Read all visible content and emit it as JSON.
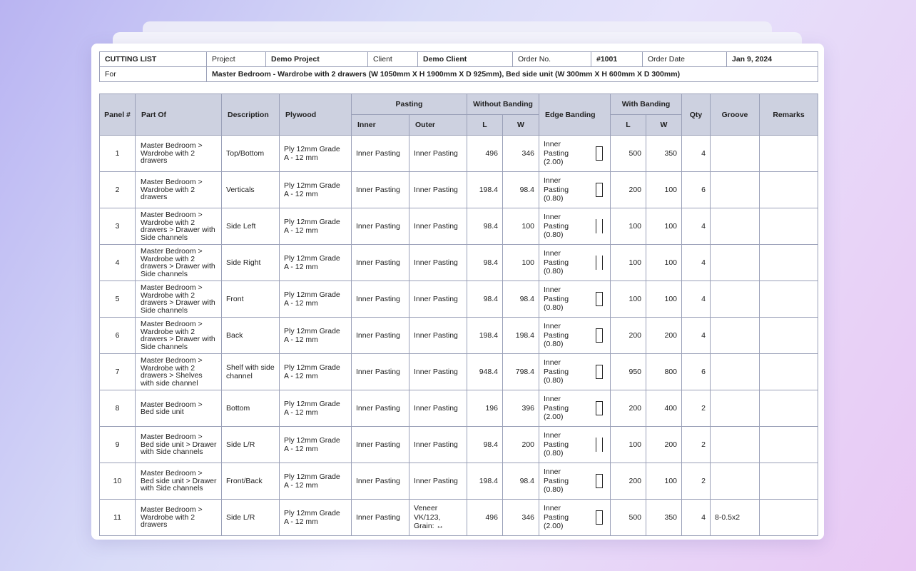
{
  "header": {
    "title": "CUTTING LIST",
    "project_label": "Project",
    "project": "Demo Project",
    "client_label": "Client",
    "client": "Demo Client",
    "order_no_label": "Order No.",
    "order_no": "#1001",
    "order_date_label": "Order Date",
    "order_date": "Jan 9, 2024",
    "for_label": "For",
    "for": "Master Bedroom - Wardrobe with 2 drawers (W 1050mm X H 1900mm X D 925mm), Bed side unit (W 300mm X H 600mm X D 300mm)"
  },
  "columns": {
    "panel": "Panel #",
    "part_of": "Part Of",
    "description": "Description",
    "plywood": "Plywood",
    "pasting": "Pasting",
    "inner": "Inner",
    "outer": "Outer",
    "without_banding": "Without Banding",
    "l": "L",
    "w": "W",
    "edge_banding": "Edge Banding",
    "with_banding": "With Banding",
    "qty": "Qty",
    "groove": "Groove",
    "remarks": "Remarks"
  },
  "rows": [
    {
      "panel": "1",
      "part_of": "Master Bedroom > Wardrobe with 2 drawers",
      "description": "Top/Bottom",
      "plywood": "Ply 12mm Grade A - 12 mm",
      "inner": "Inner Pasting",
      "outer": "Inner Pasting",
      "wo_l": "496",
      "wo_w": "346",
      "edge": "Inner Pasting (2.00)",
      "edge_icon": "edge-all-sides-icon",
      "w_l": "500",
      "w_w": "350",
      "qty": "4",
      "groove": "",
      "remarks": ""
    },
    {
      "panel": "2",
      "part_of": "Master Bedroom > Wardrobe with 2 drawers",
      "description": "Verticals",
      "plywood": "Ply 12mm Grade A - 12 mm",
      "inner": "Inner Pasting",
      "outer": "Inner Pasting",
      "wo_l": "198.4",
      "wo_w": "98.4",
      "edge": "Inner Pasting (0.80)",
      "edge_icon": "edge-all-sides-icon",
      "w_l": "200",
      "w_w": "100",
      "qty": "6",
      "groove": "",
      "remarks": ""
    },
    {
      "panel": "3",
      "part_of": "Master Bedroom > Wardrobe with 2 drawers > Drawer with Side channels",
      "description": "Side Left",
      "plywood": "Ply 12mm Grade A - 12 mm",
      "inner": "Inner Pasting",
      "outer": "Inner Pasting",
      "wo_l": "98.4",
      "wo_w": "100",
      "edge": "Inner Pasting (0.80)",
      "edge_icon": "edge-two-sides-icon",
      "w_l": "100",
      "w_w": "100",
      "qty": "4",
      "groove": "",
      "remarks": ""
    },
    {
      "panel": "4",
      "part_of": "Master Bedroom > Wardrobe with 2 drawers > Drawer with Side channels",
      "description": "Side Right",
      "plywood": "Ply 12mm Grade A - 12 mm",
      "inner": "Inner Pasting",
      "outer": "Inner Pasting",
      "wo_l": "98.4",
      "wo_w": "100",
      "edge": "Inner Pasting (0.80)",
      "edge_icon": "edge-two-sides-icon",
      "w_l": "100",
      "w_w": "100",
      "qty": "4",
      "groove": "",
      "remarks": ""
    },
    {
      "panel": "5",
      "part_of": "Master Bedroom > Wardrobe with 2 drawers > Drawer with Side channels",
      "description": "Front",
      "plywood": "Ply 12mm Grade A - 12 mm",
      "inner": "Inner Pasting",
      "outer": "Inner Pasting",
      "wo_l": "98.4",
      "wo_w": "98.4",
      "edge": "Inner Pasting (0.80)",
      "edge_icon": "edge-all-sides-icon",
      "w_l": "100",
      "w_w": "100",
      "qty": "4",
      "groove": "",
      "remarks": ""
    },
    {
      "panel": "6",
      "part_of": "Master Bedroom > Wardrobe with 2 drawers > Drawer with Side channels",
      "description": "Back",
      "plywood": "Ply 12mm Grade A - 12 mm",
      "inner": "Inner Pasting",
      "outer": "Inner Pasting",
      "wo_l": "198.4",
      "wo_w": "198.4",
      "edge": "Inner Pasting (0.80)",
      "edge_icon": "edge-all-sides-icon",
      "w_l": "200",
      "w_w": "200",
      "qty": "4",
      "groove": "",
      "remarks": ""
    },
    {
      "panel": "7",
      "part_of": "Master Bedroom > Wardrobe with 2 drawers > Shelves with side channel",
      "description": "Shelf with side channel",
      "plywood": "Ply 12mm Grade A - 12 mm",
      "inner": "Inner Pasting",
      "outer": "Inner Pasting",
      "wo_l": "948.4",
      "wo_w": "798.4",
      "edge": "Inner Pasting (0.80)",
      "edge_icon": "edge-all-sides-icon",
      "w_l": "950",
      "w_w": "800",
      "qty": "6",
      "groove": "",
      "remarks": ""
    },
    {
      "panel": "8",
      "part_of": "Master Bedroom > Bed side unit",
      "description": "Bottom",
      "plywood": "Ply 12mm Grade A - 12 mm",
      "inner": "Inner Pasting",
      "outer": "Inner Pasting",
      "wo_l": "196",
      "wo_w": "396",
      "edge": "Inner Pasting (2.00)",
      "edge_icon": "edge-all-sides-icon",
      "w_l": "200",
      "w_w": "400",
      "qty": "2",
      "groove": "",
      "remarks": ""
    },
    {
      "panel": "9",
      "part_of": "Master Bedroom > Bed side unit > Drawer with Side channels",
      "description": "Side L/R",
      "plywood": "Ply 12mm Grade A - 12 mm",
      "inner": "Inner Pasting",
      "outer": "Inner Pasting",
      "wo_l": "98.4",
      "wo_w": "200",
      "edge": "Inner Pasting (0.80)",
      "edge_icon": "edge-two-sides-icon",
      "w_l": "100",
      "w_w": "200",
      "qty": "2",
      "groove": "",
      "remarks": ""
    },
    {
      "panel": "10",
      "part_of": "Master Bedroom > Bed side unit > Drawer with Side channels",
      "description": "Front/Back",
      "plywood": "Ply 12mm Grade A - 12 mm",
      "inner": "Inner Pasting",
      "outer": "Inner Pasting",
      "wo_l": "198.4",
      "wo_w": "98.4",
      "edge": "Inner Pasting (0.80)",
      "edge_icon": "edge-all-sides-icon",
      "w_l": "200",
      "w_w": "100",
      "qty": "2",
      "groove": "",
      "remarks": ""
    },
    {
      "panel": "11",
      "part_of": "Master Bedroom > Wardrobe with 2 drawers",
      "description": "Side L/R",
      "plywood": "Ply 12mm Grade A - 12 mm",
      "inner": "Inner Pasting",
      "outer": "Veneer VK/123, Grain: ↔",
      "wo_l": "496",
      "wo_w": "346",
      "edge": "Inner Pasting (2.00)",
      "edge_icon": "edge-all-sides-icon",
      "w_l": "500",
      "w_w": "350",
      "qty": "4",
      "groove": "8-0.5x2",
      "remarks": ""
    }
  ]
}
